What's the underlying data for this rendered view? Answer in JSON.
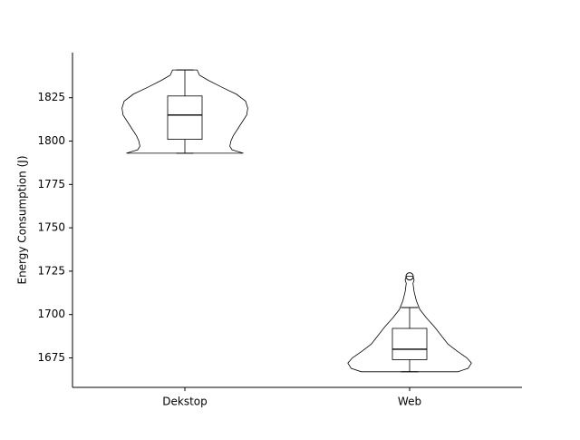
{
  "chart_data": {
    "type": "violin",
    "title": "",
    "xlabel": "",
    "ylabel": "Energy Consumption (J)",
    "ylim": [
      1658,
      1851
    ],
    "yticks": [
      1675,
      1700,
      1725,
      1750,
      1775,
      1800,
      1825
    ],
    "categories": [
      "Dekstop",
      "Web"
    ],
    "groups": [
      {
        "name": "Dekstop",
        "min": 1793,
        "q1": 1801,
        "median": 1815,
        "q3": 1826,
        "max": 1841,
        "outliers": [],
        "density": [
          [
            1793,
            0.52
          ],
          [
            1795,
            0.42
          ],
          [
            1797,
            0.4
          ],
          [
            1800,
            0.41
          ],
          [
            1803,
            0.43
          ],
          [
            1807,
            0.47
          ],
          [
            1811,
            0.51
          ],
          [
            1815,
            0.55
          ],
          [
            1819,
            0.56
          ],
          [
            1823,
            0.54
          ],
          [
            1827,
            0.46
          ],
          [
            1831,
            0.33
          ],
          [
            1835,
            0.21
          ],
          [
            1838,
            0.13
          ],
          [
            1841,
            0.11
          ]
        ]
      },
      {
        "name": "Web",
        "min": 1667,
        "q1": 1674,
        "median": 1680,
        "q3": 1692,
        "max": 1704,
        "outliers": [
          1722
        ],
        "density": [
          [
            1667,
            0.43
          ],
          [
            1669,
            0.52
          ],
          [
            1672,
            0.55
          ],
          [
            1675,
            0.51
          ],
          [
            1679,
            0.42
          ],
          [
            1683,
            0.34
          ],
          [
            1688,
            0.28
          ],
          [
            1693,
            0.22
          ],
          [
            1698,
            0.15
          ],
          [
            1703,
            0.09
          ],
          [
            1708,
            0.06
          ],
          [
            1713,
            0.04
          ],
          [
            1718,
            0.03
          ],
          [
            1720,
            0.04
          ],
          [
            1722,
            0.03
          ]
        ]
      }
    ]
  }
}
